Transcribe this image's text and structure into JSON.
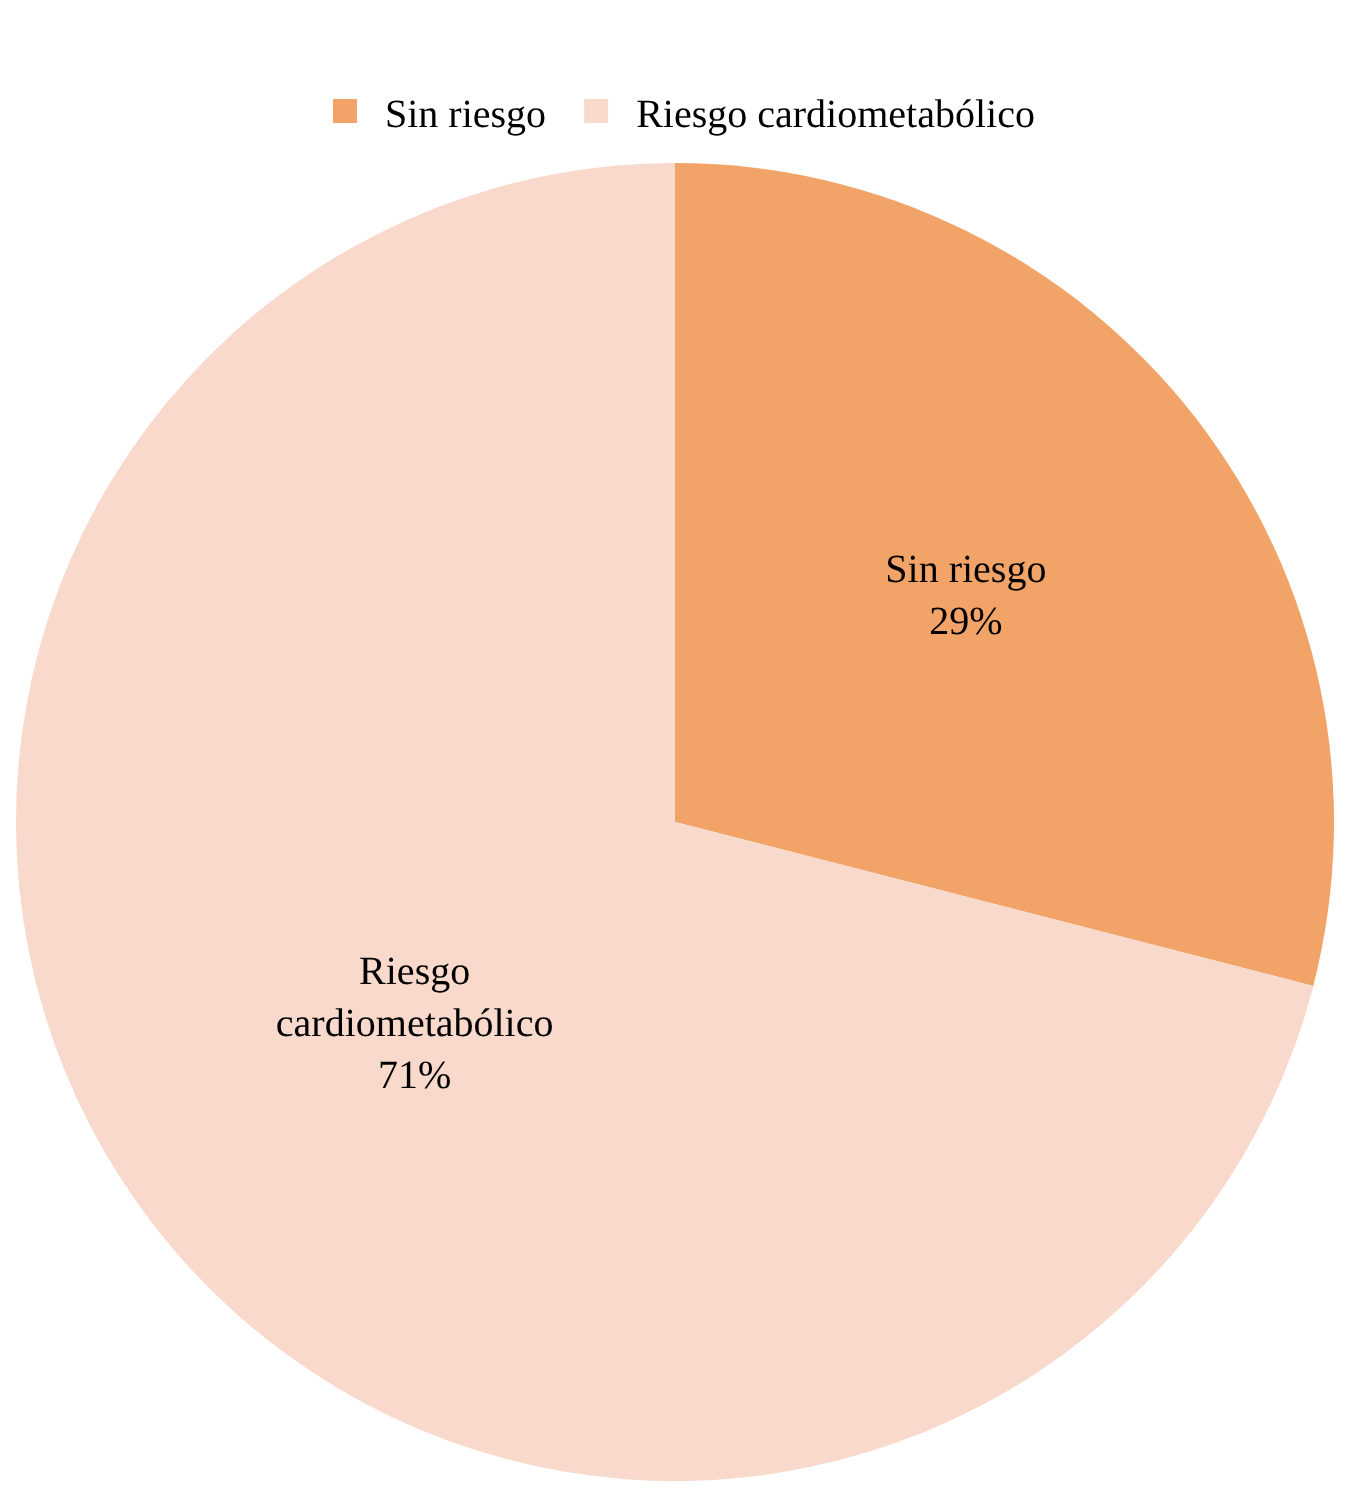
{
  "chart_data": {
    "type": "pie",
    "categories": [
      "Sin riesgo",
      "Riesgo cardiometabólico"
    ],
    "values": [
      29,
      71
    ],
    "colors": [
      "#f2a468",
      "#f8d9cb"
    ],
    "value_labels": [
      "29%",
      "71%"
    ],
    "legend": "top"
  }
}
